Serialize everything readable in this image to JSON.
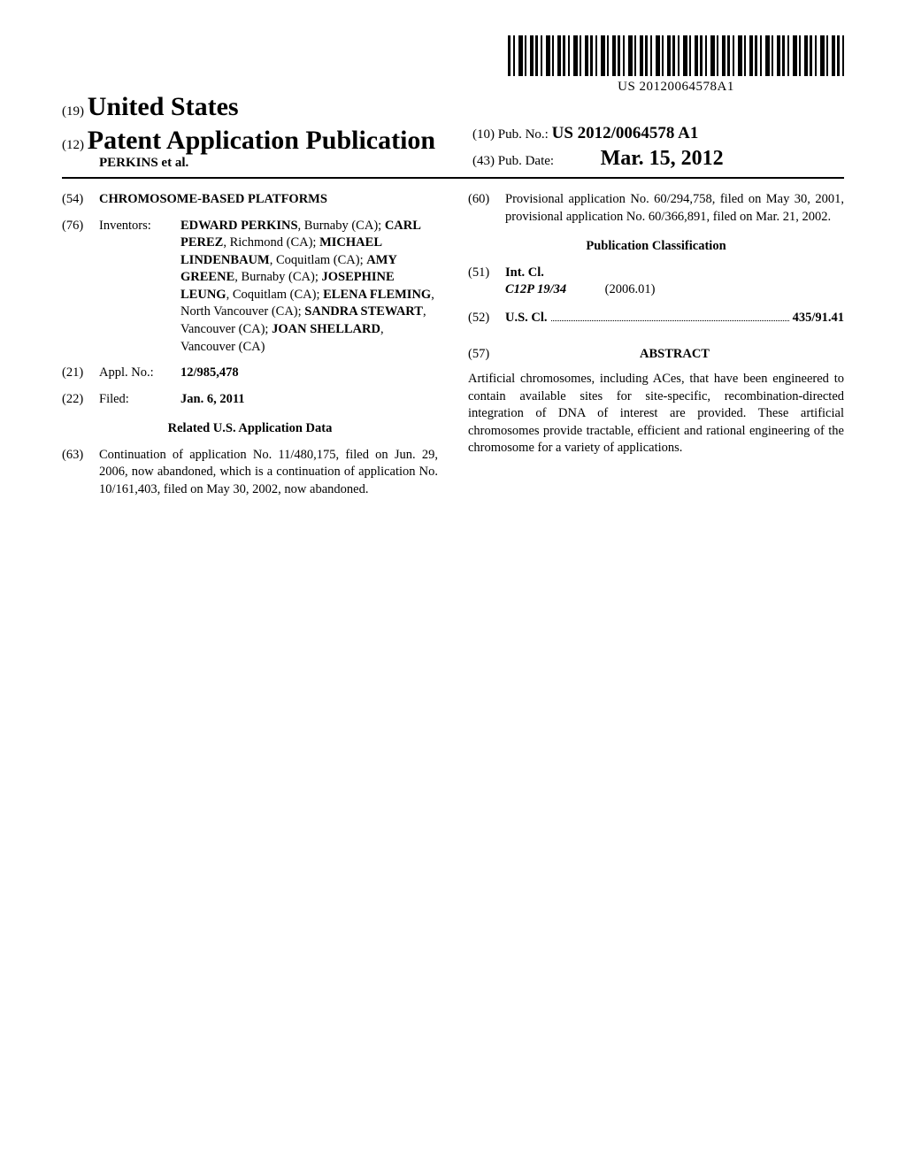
{
  "barcode_number": "US 20120064578A1",
  "header": {
    "prefix19": "(19)",
    "country": "United States",
    "prefix12": "(12)",
    "doc_type": "Patent Application Publication",
    "authors_line": "PERKINS et al."
  },
  "pub": {
    "prefix10": "(10)",
    "pubno_label": "Pub. No.:",
    "pubno": "US 2012/0064578 A1",
    "prefix43": "(43)",
    "pubdate_label": "Pub. Date:",
    "pubdate": "Mar. 15, 2012"
  },
  "field54": {
    "num": "(54)",
    "title": "CHROMOSOME-BASED PLATFORMS"
  },
  "field76": {
    "num": "(76)",
    "label": "Inventors:",
    "inventors": [
      {
        "name": "EDWARD PERKINS",
        "loc": ", Burnaby (CA); "
      },
      {
        "name": "CARL PEREZ",
        "loc": ", Richmond (CA); "
      },
      {
        "name": "MICHAEL LINDENBAUM",
        "loc": ", Coquitlam (CA); "
      },
      {
        "name": "AMY GREENE",
        "loc": ", Burnaby (CA); "
      },
      {
        "name": "JOSEPHINE LEUNG",
        "loc": ", Coquitlam (CA); "
      },
      {
        "name": "ELENA FLEMING",
        "loc": ", North Vancouver (CA); "
      },
      {
        "name": "SANDRA STEWART",
        "loc": ", Vancouver (CA); "
      },
      {
        "name": "JOAN SHELLARD",
        "loc": ", Vancouver (CA)"
      }
    ]
  },
  "field21": {
    "num": "(21)",
    "label": "Appl. No.:",
    "value": "12/985,478"
  },
  "field22": {
    "num": "(22)",
    "label": "Filed:",
    "value": "Jan. 6, 2011"
  },
  "related_header": "Related U.S. Application Data",
  "field63": {
    "num": "(63)",
    "text": "Continuation of application No. 11/480,175, filed on Jun. 29, 2006, now abandoned, which is a continuation of application No. 10/161,403, filed on May 30, 2002, now abandoned."
  },
  "field60": {
    "num": "(60)",
    "text": "Provisional application No. 60/294,758, filed on May 30, 2001, provisional application No. 60/366,891, filed on Mar. 21, 2002."
  },
  "pubclass_header": "Publication Classification",
  "field51": {
    "num": "(51)",
    "label": "Int. Cl.",
    "code": "C12P 19/34",
    "edition": "(2006.01)"
  },
  "field52": {
    "num": "(52)",
    "label": "U.S. Cl.",
    "value": "435/91.41"
  },
  "field57": {
    "num": "(57)",
    "label": "ABSTRACT"
  },
  "abstract_text": "Artificial chromosomes, including ACes, that have been engineered to contain available sites for site-specific, recombination-directed integration of DNA of interest are provided. These artificial chromosomes provide tractable, efficient and rational engineering of the chromosome for a variety of applications."
}
